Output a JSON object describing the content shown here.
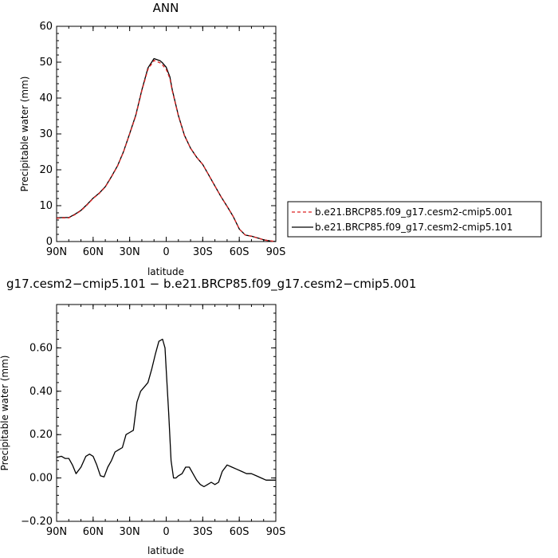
{
  "chart_data": [
    {
      "type": "line",
      "title": "ANN",
      "xlabel": "latitude",
      "ylabel": "Precipitable water (mm)",
      "xlim": [
        90,
        -90
      ],
      "ylim": [
        0,
        60
      ],
      "yticks": [
        "0",
        "10",
        "20",
        "30",
        "40",
        "50",
        "60"
      ],
      "xtick_values": [
        90,
        60,
        30,
        0,
        -30,
        -60,
        -90
      ],
      "xtick_labels": [
        "90N",
        "60N",
        "30N",
        "0",
        "30S",
        "60S",
        "90S"
      ],
      "legend_position": "right",
      "series": [
        {
          "name": "b.e21.BRCP85.f09_g17.cesm2-cmip5.001",
          "color": "#dd2222",
          "dash": "dashed",
          "x": [
            90,
            85,
            80,
            75,
            70,
            65,
            60,
            55,
            50,
            45,
            40,
            35,
            30,
            25,
            20,
            15,
            10,
            5,
            3,
            0,
            -3,
            -5,
            -10,
            -15,
            -20,
            -25,
            -30,
            -35,
            -40,
            -45,
            -50,
            -55,
            -60,
            -65,
            -70,
            -75,
            -80,
            -85,
            -90
          ],
          "y": [
            6.5,
            6.6,
            6.6,
            7.5,
            8.6,
            10.2,
            12.0,
            13.4,
            15.2,
            18.0,
            21.0,
            25.0,
            30.0,
            35.0,
            42.0,
            48.0,
            50.5,
            49.8,
            49.2,
            48.0,
            45.5,
            42.0,
            35.0,
            29.5,
            26.0,
            23.5,
            21.5,
            18.5,
            15.5,
            12.5,
            9.8,
            7.0,
            3.5,
            1.8,
            1.5,
            1.0,
            0.5,
            0.2,
            0.0
          ]
        },
        {
          "name": "b.e21.BRCP85.f09_g17.cesm2-cmip5.101",
          "color": "#000000",
          "dash": "solid",
          "x": [
            90,
            85,
            80,
            75,
            70,
            65,
            60,
            55,
            50,
            45,
            40,
            35,
            30,
            25,
            20,
            15,
            10,
            5,
            3,
            0,
            -3,
            -5,
            -10,
            -15,
            -20,
            -25,
            -30,
            -35,
            -40,
            -45,
            -50,
            -55,
            -60,
            -65,
            -70,
            -75,
            -80,
            -85,
            -90
          ],
          "y": [
            6.6,
            6.7,
            6.7,
            7.6,
            8.7,
            10.3,
            12.1,
            13.5,
            15.3,
            18.1,
            21.1,
            25.1,
            30.1,
            35.2,
            42.2,
            48.4,
            51.0,
            50.4,
            49.8,
            48.6,
            45.9,
            42.3,
            35.1,
            29.6,
            26.0,
            23.5,
            21.5,
            18.5,
            15.5,
            12.5,
            9.8,
            7.0,
            3.5,
            1.8,
            1.5,
            1.0,
            0.5,
            0.2,
            0.0
          ]
        }
      ]
    },
    {
      "type": "line",
      "title": "g17.cesm2−cmip5.101 − b.e21.BRCP85.f09_g17.cesm2−cmip5.001",
      "xlabel": "latitude",
      "ylabel": "Precipitable water (mm)",
      "xlim": [
        90,
        -90
      ],
      "ylim": [
        -0.2,
        0.8
      ],
      "yticks": [
        "−0.20",
        "0.00",
        "0.20",
        "0.40",
        "0.60"
      ],
      "ytick_values": [
        -0.2,
        0.0,
        0.2,
        0.4,
        0.6
      ],
      "xtick_values": [
        90,
        60,
        30,
        0,
        -30,
        -60,
        -90
      ],
      "xtick_labels": [
        "90N",
        "60N",
        "30N",
        "0",
        "30S",
        "60S",
        "90S"
      ],
      "series": [
        {
          "name": "",
          "color": "#000000",
          "dash": "solid",
          "x": [
            90,
            86,
            83,
            80,
            77,
            74,
            70,
            66,
            63,
            60,
            57,
            54,
            51,
            48,
            45,
            42,
            39,
            36,
            33,
            30,
            27,
            24,
            21,
            18,
            15,
            12,
            9,
            6,
            3,
            1,
            0,
            -2,
            -4,
            -6,
            -8,
            -10,
            -13,
            -16,
            -19,
            -22,
            -25,
            -28,
            -31,
            -34,
            -37,
            -40,
            -43,
            -46,
            -50,
            -54,
            -58,
            -62,
            -66,
            -70,
            -74,
            -78,
            -82,
            -86,
            -90
          ],
          "y": [
            0.095,
            0.1,
            0.09,
            0.09,
            0.06,
            0.02,
            0.05,
            0.1,
            0.11,
            0.1,
            0.06,
            0.01,
            0.005,
            0.05,
            0.08,
            0.12,
            0.13,
            0.14,
            0.2,
            0.21,
            0.22,
            0.35,
            0.4,
            0.42,
            0.44,
            0.5,
            0.57,
            0.63,
            0.64,
            0.6,
            0.5,
            0.3,
            0.08,
            0.0,
            0.0,
            0.01,
            0.02,
            0.05,
            0.05,
            0.02,
            -0.01,
            -0.03,
            -0.04,
            -0.03,
            -0.02,
            -0.03,
            -0.02,
            0.03,
            0.06,
            0.05,
            0.04,
            0.03,
            0.02,
            0.02,
            0.01,
            0.0,
            -0.01,
            -0.01,
            -0.01
          ]
        }
      ]
    }
  ]
}
